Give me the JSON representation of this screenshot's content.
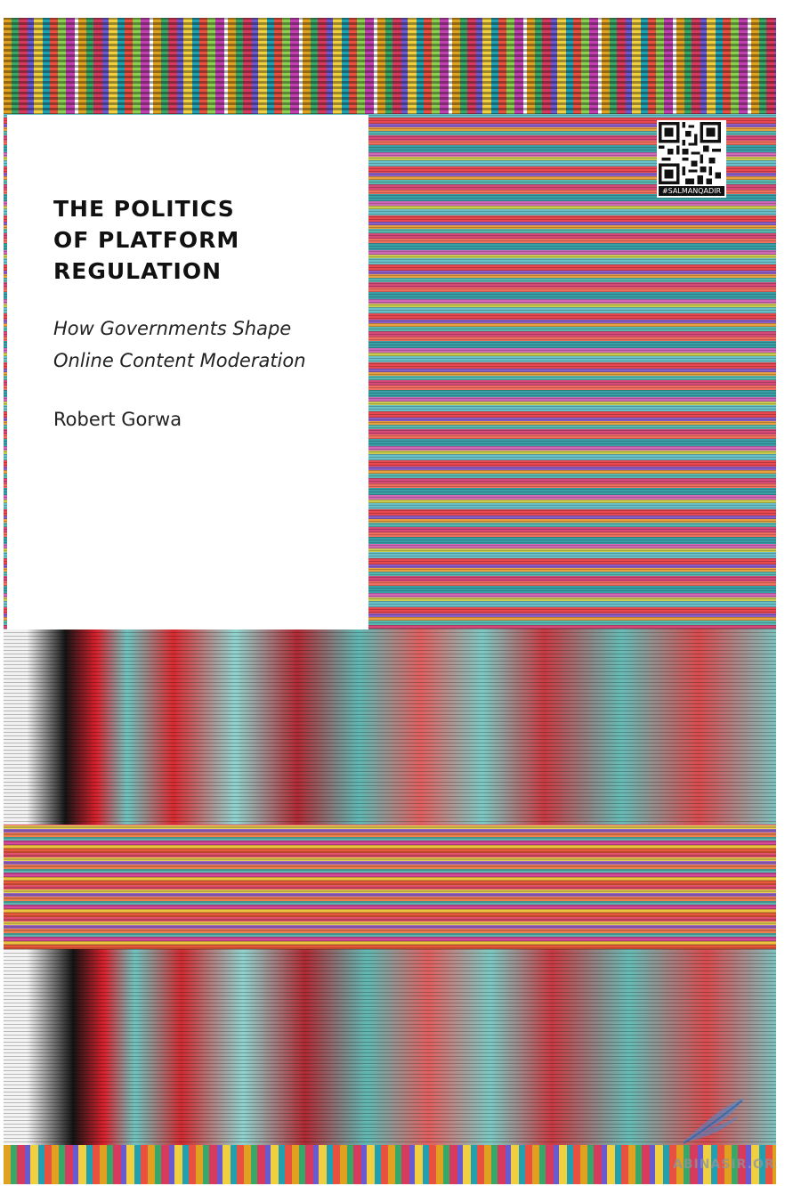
{
  "cover": {
    "title_lines": [
      "THE POLITICS",
      "OF PLATFORM",
      "REGULATION"
    ],
    "subtitle_lines": [
      "How Governments Shape",
      "Online Content Moderation"
    ],
    "author": "Robert Gorwa"
  },
  "watermark": {
    "qr_caption": "#SALMANQADIR",
    "site_text": "ABINASIR.ORG",
    "logo_icon": "feather-logo-icon"
  },
  "colors": {
    "panel": "#ffffff",
    "title_text": "#111111",
    "glitch_teal": "#6ec5c0",
    "glitch_red": "#d8202c"
  }
}
